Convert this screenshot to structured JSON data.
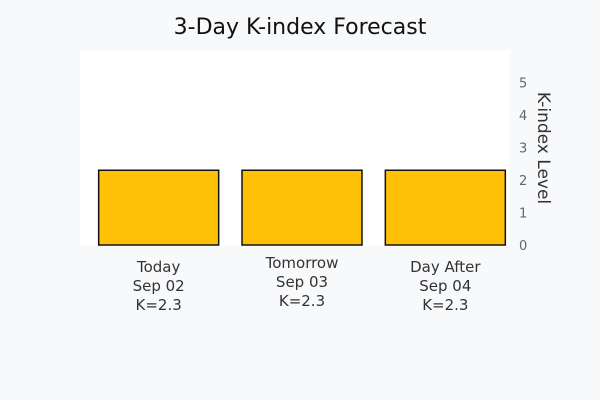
{
  "chart_data": {
    "type": "bar",
    "title": "3-Day K-index Forecast",
    "xlabel": "",
    "ylabel": "K-index Level",
    "ylim": [
      0,
      6
    ],
    "yticks": [
      0,
      1,
      2,
      3,
      4,
      5
    ],
    "categories": [
      {
        "lines": [
          "Today",
          "Sep 02",
          "K=2.3"
        ]
      },
      {
        "lines": [
          "Tomorrow",
          "Sep 03",
          "K=2.3"
        ]
      },
      {
        "lines": [
          "Day After",
          "Sep 04",
          "K=2.3"
        ]
      }
    ],
    "values": [
      2.3,
      2.3,
      2.3
    ],
    "bar_color": "#ffc107",
    "bar_edge_color": "#111111",
    "plot_background": "#ffffff",
    "page_background": "#f8f9fb",
    "grid": false,
    "legend": "none",
    "y_axis_side": "right"
  }
}
